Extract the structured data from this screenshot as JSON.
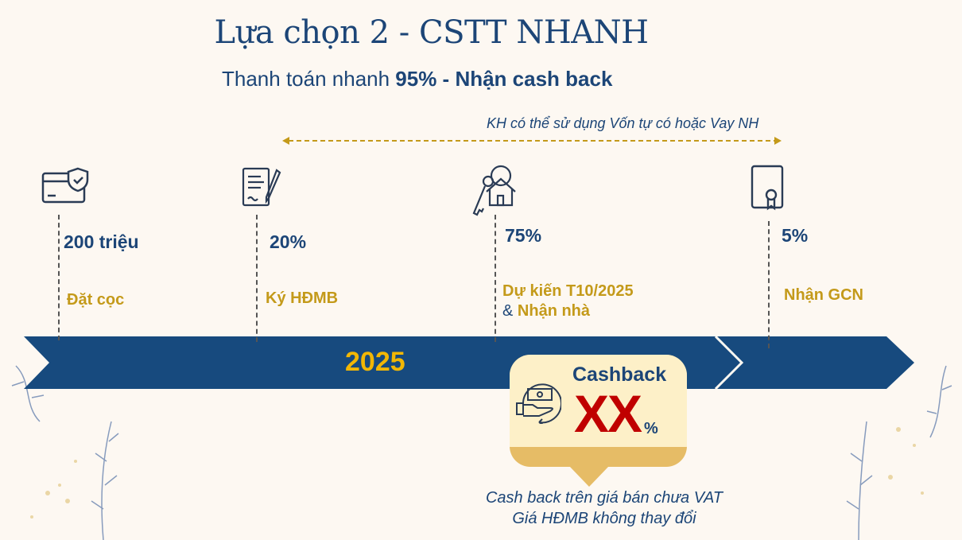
{
  "title": "Lựa chọn 2 - CSTT NHANH",
  "subtitle": {
    "prefix": "Thanh toán nhanh ",
    "highlight": "95% - Nhận cash back"
  },
  "range_note": "KH có thể sử dụng Vốn tự có hoặc Vay NH",
  "year": "2025",
  "milestones": [
    {
      "icon": "card-shield-icon",
      "amount": "200 triệu",
      "label": "Đặt cọc"
    },
    {
      "icon": "contract-pen-icon",
      "amount": "20%",
      "label": "Ký HĐMB"
    },
    {
      "icon": "key-house-icon",
      "amount": "75%",
      "label_line1": "Dự kiến T10/2025",
      "label_line2_prefix": "& ",
      "label_line2": "Nhận nhà"
    },
    {
      "icon": "certificate-icon",
      "amount": "5%",
      "label": "Nhận GCN"
    }
  ],
  "cashback": {
    "title": "Cashback",
    "value": "XX",
    "unit": "%",
    "icon": "cash-hand-icon"
  },
  "footnote": [
    "Cash back trên giá bán chưa VAT",
    "Giá HĐMB không thay đổi"
  ],
  "colors": {
    "navy": "#1c4577",
    "gold": "#c49a1a",
    "year": "#f2b705",
    "red": "#c00000",
    "cream": "#fdf0c8",
    "band": "#e6bc66"
  }
}
